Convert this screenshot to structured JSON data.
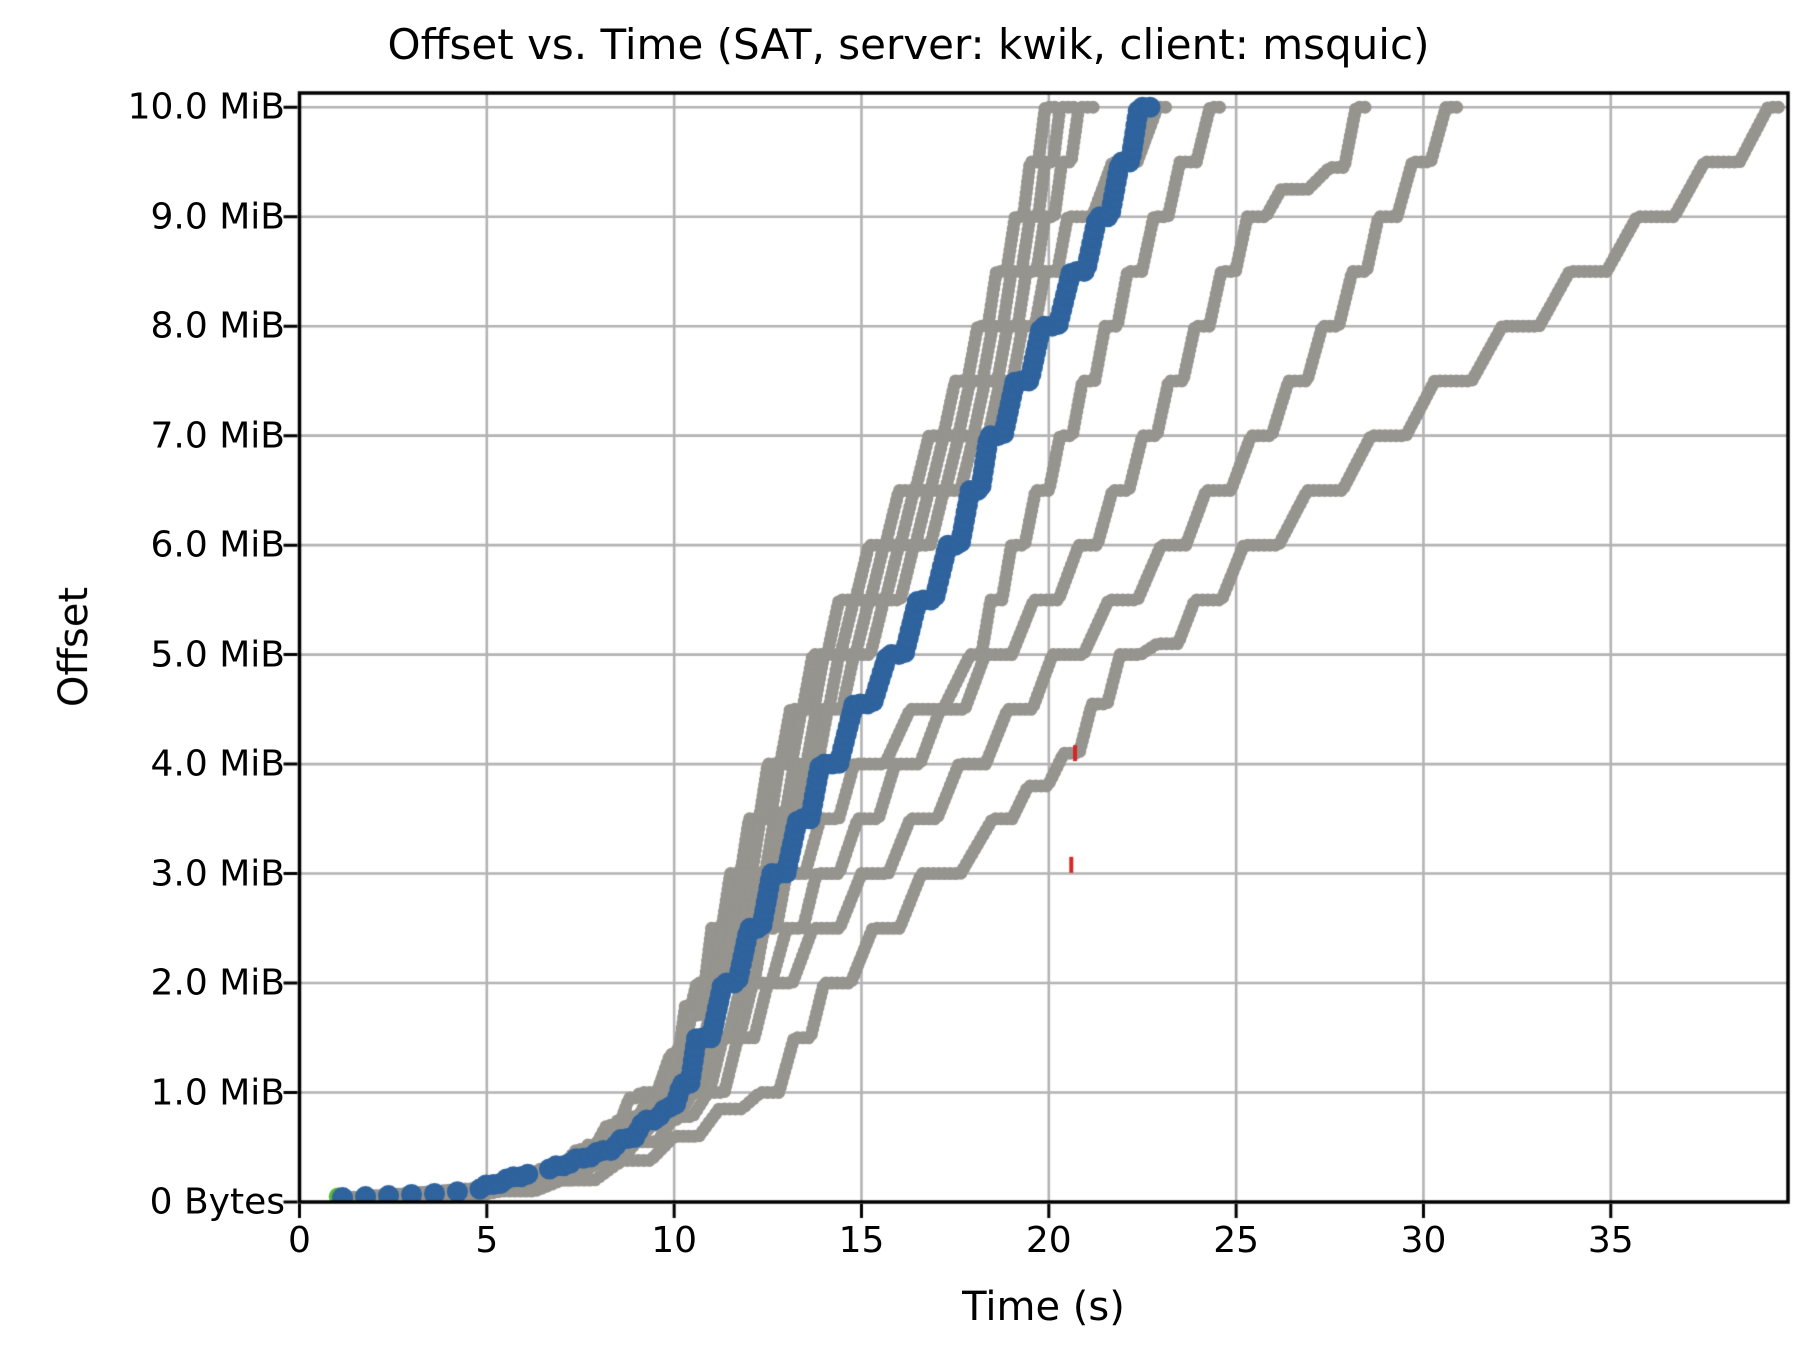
{
  "title": "Offset vs. Time (SAT, server: kwik, client: msquic)",
  "chart_data": {
    "type": "scatter",
    "title": "Offset vs. Time (SAT, server: kwik, client: msquic)",
    "xlabel": "Time (s)",
    "ylabel": "Offset",
    "xlim": [
      0,
      39.73
    ],
    "ylim_mib": [
      0,
      10.13
    ],
    "grid": true,
    "legend_position": "none",
    "x_ticks": [
      0,
      5,
      10,
      15,
      20,
      25,
      30,
      35
    ],
    "y_ticks": [
      {
        "value": 0,
        "label": "0 Bytes"
      },
      {
        "value": 1,
        "label": "1.0 MiB"
      },
      {
        "value": 2,
        "label": "2.0 MiB"
      },
      {
        "value": 3,
        "label": "3.0 MiB"
      },
      {
        "value": 4,
        "label": "4.0 MiB"
      },
      {
        "value": 5,
        "label": "5.0 MiB"
      },
      {
        "value": 6,
        "label": "6.0 MiB"
      },
      {
        "value": 7,
        "label": "7.0 MiB"
      },
      {
        "value": 8,
        "label": "8.0 MiB"
      },
      {
        "value": 9,
        "label": "9.0 MiB"
      },
      {
        "value": 10,
        "label": "10.0 MiB"
      }
    ],
    "colors": {
      "highlight_blue": "#2e639e",
      "background_gray": "#96948e",
      "handshake_green": "#5cb53c",
      "loss_red": "#d62728",
      "gridline": "#b3b3b3",
      "spine": "#000000"
    },
    "units": {
      "x": "seconds",
      "y": "MiB"
    },
    "series": [
      {
        "name": "gray-run-1",
        "style": "steps",
        "color": "#96948e",
        "radius": 6.5,
        "spacing": 5.5,
        "points": [
          [
            1.3,
            0.04
          ],
          [
            2.6,
            0.07
          ],
          [
            3.9,
            0.1
          ],
          [
            5.2,
            0.17
          ],
          [
            6.4,
            0.3
          ],
          [
            7.4,
            0.48
          ],
          [
            8.2,
            0.7
          ],
          [
            8.8,
            0.95
          ],
          [
            9.1,
            1.0
          ],
          [
            9.9,
            1.35
          ],
          [
            10.3,
            1.8
          ],
          [
            10.6,
            2.0
          ],
          [
            11.0,
            2.5
          ],
          [
            11.5,
            3.0
          ],
          [
            12.0,
            3.5
          ],
          [
            12.5,
            4.0
          ],
          [
            13.1,
            4.5
          ],
          [
            13.7,
            5.0
          ],
          [
            14.4,
            5.5
          ],
          [
            15.2,
            6.0
          ],
          [
            16.0,
            6.5
          ],
          [
            16.8,
            7.0
          ],
          [
            17.5,
            7.5
          ],
          [
            18.1,
            8.0
          ],
          [
            18.6,
            8.5
          ],
          [
            19.1,
            9.0
          ],
          [
            19.5,
            9.5
          ],
          [
            19.9,
            10.0
          ],
          [
            20.3,
            10.0
          ]
        ]
      },
      {
        "name": "gray-run-2",
        "style": "steps",
        "color": "#96948e",
        "radius": 6.5,
        "spacing": 5.5,
        "points": [
          [
            1.4,
            0.04
          ],
          [
            2.8,
            0.07
          ],
          [
            4.2,
            0.11
          ],
          [
            5.5,
            0.19
          ],
          [
            6.7,
            0.33
          ],
          [
            7.7,
            0.52
          ],
          [
            8.5,
            0.75
          ],
          [
            9.4,
            1.0
          ],
          [
            10.1,
            1.4
          ],
          [
            10.8,
            2.0
          ],
          [
            11.3,
            2.55
          ],
          [
            11.8,
            3.0
          ],
          [
            12.3,
            3.5
          ],
          [
            12.8,
            4.0
          ],
          [
            13.4,
            4.5
          ],
          [
            14.0,
            5.0
          ],
          [
            14.8,
            5.5
          ],
          [
            15.6,
            6.0
          ],
          [
            16.4,
            6.5
          ],
          [
            17.2,
            7.0
          ],
          [
            17.9,
            7.5
          ],
          [
            18.5,
            8.0
          ],
          [
            19.0,
            8.5
          ],
          [
            19.5,
            9.0
          ],
          [
            19.9,
            9.5
          ],
          [
            20.3,
            10.0
          ],
          [
            20.7,
            10.0
          ]
        ]
      },
      {
        "name": "gray-run-3",
        "style": "steps",
        "color": "#96948e",
        "radius": 6.5,
        "spacing": 5.5,
        "points": [
          [
            1.5,
            0.04
          ],
          [
            3.0,
            0.08
          ],
          [
            4.5,
            0.12
          ],
          [
            5.8,
            0.2
          ],
          [
            7.0,
            0.35
          ],
          [
            8.0,
            0.55
          ],
          [
            8.8,
            0.78
          ],
          [
            9.6,
            1.0
          ],
          [
            10.4,
            1.45
          ],
          [
            11.1,
            2.0
          ],
          [
            11.6,
            2.6
          ],
          [
            12.1,
            3.0
          ],
          [
            12.7,
            3.55
          ],
          [
            13.2,
            4.0
          ],
          [
            13.8,
            4.5
          ],
          [
            14.4,
            5.0
          ],
          [
            15.2,
            5.5
          ],
          [
            16.0,
            6.0
          ],
          [
            16.8,
            6.5
          ],
          [
            17.6,
            7.0
          ],
          [
            18.3,
            7.5
          ],
          [
            18.9,
            8.0
          ],
          [
            19.4,
            8.5
          ],
          [
            19.9,
            9.0
          ],
          [
            20.35,
            9.5
          ],
          [
            20.8,
            10.0
          ],
          [
            21.2,
            10.0
          ]
        ]
      },
      {
        "name": "gray-run-4",
        "style": "steps",
        "color": "#96948e",
        "radius": 6.5,
        "spacing": 5.5,
        "points": [
          [
            1.6,
            0.04
          ],
          [
            3.2,
            0.08
          ],
          [
            4.8,
            0.13
          ],
          [
            6.1,
            0.22
          ],
          [
            7.3,
            0.38
          ],
          [
            8.3,
            0.6
          ],
          [
            9.1,
            0.82
          ],
          [
            9.9,
            1.0
          ],
          [
            10.7,
            1.5
          ],
          [
            11.4,
            2.0
          ],
          [
            11.9,
            2.6
          ],
          [
            12.3,
            3.0
          ],
          [
            12.9,
            3.55
          ],
          [
            13.5,
            4.0
          ],
          [
            14.1,
            4.5
          ],
          [
            14.8,
            5.0
          ],
          [
            15.6,
            5.5
          ],
          [
            16.4,
            6.0
          ],
          [
            17.2,
            6.5
          ],
          [
            18.0,
            7.0
          ],
          [
            18.7,
            7.5
          ],
          [
            19.3,
            8.0
          ],
          [
            19.9,
            8.5
          ],
          [
            20.5,
            9.0
          ],
          [
            21.7,
            9.5
          ],
          [
            22.9,
            10.0
          ],
          [
            23.2,
            10.0
          ]
        ]
      },
      {
        "name": "gray-run-5",
        "style": "steps",
        "color": "#96948e",
        "radius": 6.5,
        "spacing": 5.5,
        "points": [
          [
            1.5,
            0.03
          ],
          [
            3.0,
            0.07
          ],
          [
            4.5,
            0.11
          ],
          [
            5.8,
            0.18
          ],
          [
            7.0,
            0.32
          ],
          [
            8.1,
            0.5
          ],
          [
            9.0,
            0.7
          ],
          [
            10.2,
            1.0
          ],
          [
            11.0,
            1.5
          ],
          [
            11.8,
            2.0
          ],
          [
            12.4,
            2.5
          ],
          [
            13.0,
            3.0
          ],
          [
            13.9,
            3.5
          ],
          [
            14.8,
            4.0
          ],
          [
            16.3,
            4.5
          ],
          [
            17.9,
            5.0
          ],
          [
            18.45,
            5.5
          ],
          [
            19.0,
            6.0
          ],
          [
            19.65,
            6.5
          ],
          [
            20.3,
            7.0
          ],
          [
            20.9,
            7.5
          ],
          [
            21.5,
            8.0
          ],
          [
            22.1,
            8.5
          ],
          [
            22.8,
            9.0
          ],
          [
            23.5,
            9.5
          ],
          [
            24.3,
            10.0
          ],
          [
            24.65,
            10.0
          ]
        ]
      },
      {
        "name": "gray-run-6",
        "style": "steps",
        "color": "#96948e",
        "radius": 6.5,
        "spacing": 5.5,
        "points": [
          [
            1.6,
            0.03
          ],
          [
            3.2,
            0.07
          ],
          [
            4.8,
            0.12
          ],
          [
            6.2,
            0.2
          ],
          [
            7.4,
            0.35
          ],
          [
            8.5,
            0.55
          ],
          [
            9.5,
            0.75
          ],
          [
            10.5,
            1.0
          ],
          [
            11.3,
            1.5
          ],
          [
            12.1,
            2.0
          ],
          [
            13.0,
            2.5
          ],
          [
            13.8,
            3.0
          ],
          [
            14.9,
            3.5
          ],
          [
            15.9,
            4.0
          ],
          [
            17.1,
            4.5
          ],
          [
            18.3,
            5.0
          ],
          [
            19.6,
            5.5
          ],
          [
            20.8,
            6.0
          ],
          [
            21.7,
            6.5
          ],
          [
            22.5,
            7.0
          ],
          [
            23.2,
            7.5
          ],
          [
            23.9,
            8.0
          ],
          [
            24.6,
            8.5
          ],
          [
            25.3,
            9.0
          ],
          [
            26.2,
            9.25
          ],
          [
            27.5,
            9.45
          ],
          [
            28.2,
            10.0
          ],
          [
            28.5,
            10.0
          ]
        ]
      },
      {
        "name": "gray-run-7",
        "style": "steps",
        "color": "#96948e",
        "radius": 6.5,
        "spacing": 5.5,
        "points": [
          [
            1.7,
            0.03
          ],
          [
            3.4,
            0.07
          ],
          [
            5.1,
            0.12
          ],
          [
            6.6,
            0.2
          ],
          [
            7.9,
            0.35
          ],
          [
            9.0,
            0.55
          ],
          [
            10.0,
            0.78
          ],
          [
            10.9,
            1.0
          ],
          [
            11.7,
            1.5
          ],
          [
            12.5,
            2.0
          ],
          [
            13.7,
            2.5
          ],
          [
            15.0,
            3.0
          ],
          [
            16.3,
            3.5
          ],
          [
            17.6,
            4.0
          ],
          [
            18.9,
            4.5
          ],
          [
            20.1,
            5.0
          ],
          [
            21.6,
            5.5
          ],
          [
            23.0,
            6.0
          ],
          [
            24.2,
            6.5
          ],
          [
            25.4,
            7.0
          ],
          [
            26.4,
            7.5
          ],
          [
            27.3,
            8.0
          ],
          [
            28.1,
            8.5
          ],
          [
            28.8,
            9.0
          ],
          [
            29.7,
            9.5
          ],
          [
            30.6,
            10.0
          ],
          [
            30.95,
            10.0
          ]
        ]
      },
      {
        "name": "gray-run-8",
        "style": "steps",
        "color": "#96948e",
        "radius": 6.5,
        "spacing": 5.5,
        "points": [
          [
            1.8,
            0.02
          ],
          [
            3.6,
            0.05
          ],
          [
            5.4,
            0.1
          ],
          [
            7.0,
            0.2
          ],
          [
            8.6,
            0.38
          ],
          [
            10.0,
            0.6
          ],
          [
            11.2,
            0.85
          ],
          [
            12.3,
            1.0
          ],
          [
            13.2,
            1.5
          ],
          [
            14.0,
            2.0
          ],
          [
            15.3,
            2.5
          ],
          [
            16.6,
            3.0
          ],
          [
            18.5,
            3.5
          ],
          [
            20.4,
            4.1
          ],
          [
            21.9,
            5.0
          ],
          [
            22.9,
            5.1
          ],
          [
            23.9,
            5.5
          ],
          [
            25.2,
            6.0
          ],
          [
            26.9,
            6.5
          ],
          [
            28.6,
            7.0
          ],
          [
            30.3,
            7.5
          ],
          [
            32.1,
            8.0
          ],
          [
            33.9,
            8.5
          ],
          [
            35.7,
            9.0
          ],
          [
            37.5,
            9.5
          ],
          [
            39.2,
            10.0
          ],
          [
            39.55,
            10.0
          ]
        ]
      },
      {
        "name": "loss-marks",
        "style": "dash",
        "color": "#d62728",
        "radius": 2.5,
        "points": [
          [
            20.6,
            3.08
          ],
          [
            20.7,
            4.1
          ]
        ]
      },
      {
        "name": "handshake-start",
        "style": "dot",
        "color": "#5cb53c",
        "radius": 9,
        "points": [
          [
            1.02,
            0.05
          ]
        ]
      },
      {
        "name": "highlighted-run",
        "style": "steps",
        "color": "#2e639e",
        "radius": 10.5,
        "spacing": 7.5,
        "slow_spacing": 23,
        "points": [
          [
            1.15,
            0.04
          ],
          [
            1.8,
            0.05
          ],
          [
            2.45,
            0.06
          ],
          [
            3.1,
            0.07
          ],
          [
            3.75,
            0.08
          ],
          [
            4.4,
            0.1
          ],
          [
            5.0,
            0.16
          ],
          [
            5.6,
            0.23
          ],
          [
            6.2,
            0.27
          ],
          [
            6.8,
            0.33
          ],
          [
            7.4,
            0.4
          ],
          [
            8.0,
            0.47
          ],
          [
            8.6,
            0.58
          ],
          [
            9.2,
            0.75
          ],
          [
            9.8,
            0.87
          ],
          [
            10.2,
            1.08
          ],
          [
            10.6,
            1.5
          ],
          [
            11.3,
            2.0
          ],
          [
            12.0,
            2.5
          ],
          [
            12.6,
            3.0
          ],
          [
            13.3,
            3.5
          ],
          [
            13.9,
            4.0
          ],
          [
            14.8,
            4.55
          ],
          [
            15.7,
            5.0
          ],
          [
            16.5,
            5.5
          ],
          [
            17.3,
            6.0
          ],
          [
            17.9,
            6.5
          ],
          [
            18.4,
            7.0
          ],
          [
            19.1,
            7.5
          ],
          [
            19.8,
            8.0
          ],
          [
            20.6,
            8.5
          ],
          [
            21.3,
            9.0
          ],
          [
            21.9,
            9.5
          ],
          [
            22.4,
            10.0
          ],
          [
            22.75,
            10.0
          ]
        ]
      }
    ]
  }
}
